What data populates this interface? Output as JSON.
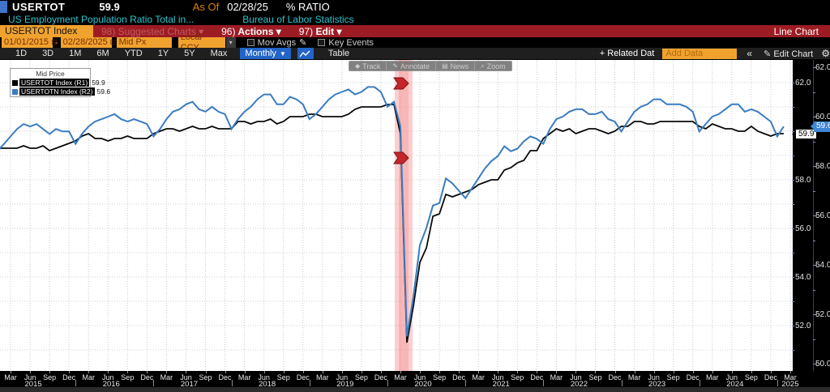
{
  "header": {
    "ticker": "USERTOT",
    "last_price": "59.9",
    "as_of_label": "As Of",
    "as_of_date": "02/28/25",
    "unit": "% RATIO",
    "description": "US Employment Population Ratio Total in...",
    "source": "Bureau of Labor Statistics"
  },
  "command_bar": {
    "security_field": "USERTOT Index",
    "suggested_charts_label": "98) Suggested Charts",
    "actions_num": "96)",
    "actions_label": "Actions",
    "edit_num": "97)",
    "edit_label": "Edit",
    "chart_type_label": "Line Chart"
  },
  "settings_bar": {
    "date_from": "01/01/2015",
    "date_to": "02/28/2025",
    "range_dash": "-",
    "price_field": "Mid Px",
    "currency_field": "Local CCY",
    "mov_avgs_label": "Mov Avgs",
    "key_events_label": "Key Events"
  },
  "period_bar": {
    "ranges": [
      "1D",
      "3D",
      "1M",
      "6M",
      "YTD",
      "1Y",
      "5Y",
      "Max"
    ],
    "frequency": "Monthly",
    "table_label": "Table",
    "related_data_label": "+ Related Dat",
    "add_data_value": "Add Data",
    "collapse_label": "«",
    "edit_chart_label": "Edit Chart"
  },
  "chart_toolbar": {
    "items": [
      {
        "glyph": "◆",
        "label": "Track"
      },
      {
        "glyph": "✎",
        "label": "Annotate"
      },
      {
        "glyph": "▤",
        "label": "News"
      },
      {
        "glyph": "⌕",
        "label": "Zoom"
      }
    ]
  },
  "legend": {
    "title": "Mid Price",
    "rows": [
      {
        "label": "USERTOT Index  (R1)",
        "value": "59.9",
        "color": "#000000"
      },
      {
        "label": "USERTOTN Index  (R2)",
        "value": "59.6",
        "color": "#3a7cc1"
      }
    ]
  },
  "chart_data": {
    "type": "line",
    "title": "US Employment Population Ratio Total",
    "frequency": "monthly",
    "x_start": "2015-01",
    "x_end": "2025-02",
    "grid": true,
    "legend_position": "top-left",
    "axis_r1": {
      "side": "right",
      "ticks": [
        62.0,
        58.0,
        56.0,
        54.0,
        52.0
      ],
      "last_value_badge": "59.9",
      "range_hint": [
        50.9,
        62.9
      ]
    },
    "axis_r2": {
      "side": "right",
      "ticks": [
        62.0,
        60.0,
        58.0,
        56.0,
        54.0,
        52.0,
        50.0
      ],
      "last_value_badge": "59.6",
      "range_hint": [
        49.5,
        62.3
      ]
    },
    "x_axis": {
      "month_labels": [
        "Mar",
        "Jun",
        "Sep",
        "Dec",
        "Mar",
        "Jun",
        "Sep",
        "Dec",
        "Mar",
        "Jun",
        "Sep",
        "Dec",
        "Mar",
        "Jun",
        "Sep",
        "Dec",
        "Mar",
        "Jun",
        "Sep",
        "Dec",
        "Mar",
        "Jun",
        "Sep",
        "Dec",
        "Mar",
        "Jun",
        "Sep",
        "Dec",
        "Mar",
        "Jun",
        "Sep",
        "Dec",
        "Mar",
        "Jun",
        "Sep",
        "Dec",
        "Mar",
        "Jun",
        "Sep",
        "Dec",
        "Mar"
      ],
      "year_labels": [
        "2015",
        "2016",
        "2017",
        "2018",
        "2019",
        "2020",
        "2021",
        "2022",
        "2023",
        "2024",
        "2025"
      ]
    },
    "event_band": {
      "from": "2020-02",
      "to": "2020-04",
      "color": "#f26a6a",
      "marker_count": 2
    },
    "series": [
      {
        "name": "USERTOT Index",
        "axis": "R1",
        "color": "#0a0a0a",
        "values": [
          59.3,
          59.3,
          59.3,
          59.3,
          59.4,
          59.3,
          59.3,
          59.4,
          59.2,
          59.3,
          59.4,
          59.5,
          59.6,
          59.8,
          59.9,
          59.7,
          59.7,
          59.6,
          59.7,
          59.7,
          59.8,
          59.7,
          59.7,
          59.7,
          59.9,
          60.0,
          60.1,
          60.1,
          60.0,
          60.1,
          60.2,
          60.1,
          60.1,
          60.2,
          60.1,
          60.1,
          60.1,
          60.4,
          60.4,
          60.3,
          60.4,
          60.4,
          60.5,
          60.3,
          60.4,
          60.6,
          60.6,
          60.6,
          60.7,
          60.7,
          60.6,
          60.6,
          60.6,
          60.6,
          60.7,
          60.9,
          61.0,
          61.0,
          61.0,
          61.0,
          61.1,
          61.1,
          59.9,
          51.3,
          52.8,
          54.6,
          55.2,
          56.5,
          56.6,
          57.4,
          57.3,
          57.4,
          57.5,
          57.6,
          57.8,
          57.9,
          58.0,
          58.0,
          58.4,
          58.5,
          58.7,
          58.8,
          59.2,
          59.2,
          59.7,
          59.9,
          60.1,
          60.0,
          60.1,
          59.9,
          60.0,
          60.1,
          60.1,
          60.0,
          59.9,
          60.0,
          60.2,
          60.2,
          60.4,
          60.4,
          60.3,
          60.3,
          60.4,
          60.4,
          60.4,
          60.4,
          60.4,
          60.4,
          60.2,
          60.1,
          60.3,
          60.2,
          60.1,
          60.1,
          60.0,
          60.0,
          60.2,
          60.0,
          59.9,
          59.8,
          59.9,
          59.9
        ]
      },
      {
        "name": "USERTOTN Index",
        "axis": "R2",
        "color": "#3a7cc1",
        "values": [
          58.6,
          58.9,
          59.2,
          59.5,
          59.7,
          59.6,
          59.7,
          59.5,
          59.3,
          59.5,
          59.4,
          59.4,
          58.9,
          59.3,
          59.6,
          59.8,
          59.9,
          60.0,
          60.1,
          59.9,
          59.8,
          59.9,
          59.8,
          59.7,
          59.2,
          59.5,
          59.9,
          60.2,
          60.3,
          60.5,
          60.6,
          60.3,
          60.2,
          60.4,
          60.2,
          60.1,
          59.5,
          59.9,
          60.2,
          60.4,
          60.7,
          60.9,
          60.9,
          60.5,
          60.5,
          60.8,
          60.7,
          60.5,
          59.9,
          60.1,
          60.4,
          60.7,
          60.9,
          61.0,
          61.1,
          60.9,
          61.0,
          61.2,
          61.2,
          61.0,
          60.4,
          60.6,
          59.6,
          51.1,
          52.7,
          54.8,
          55.5,
          56.4,
          56.5,
          57.5,
          57.3,
          57.0,
          56.7,
          57.1,
          57.5,
          57.9,
          58.2,
          58.4,
          58.8,
          58.6,
          58.7,
          59.0,
          59.2,
          59.1,
          58.9,
          59.5,
          59.9,
          60.0,
          60.2,
          60.3,
          60.3,
          60.1,
          60.1,
          60.2,
          59.9,
          59.8,
          59.4,
          59.8,
          60.2,
          60.4,
          60.5,
          60.7,
          60.7,
          60.5,
          60.5,
          60.5,
          60.4,
          60.2,
          59.4,
          59.7,
          60.0,
          60.1,
          60.3,
          60.5,
          60.5,
          60.2,
          60.3,
          60.2,
          60.0,
          59.8,
          59.2,
          59.6
        ]
      }
    ]
  },
  "colors": {
    "accent_amber": "#f0a22e",
    "command_bar_red": "#9d1c24",
    "highlight_blue": "#2264c8",
    "series_blue": "#3a7cc1",
    "badge_blue": "#3f86d8",
    "cyan_text": "#2ec4cf",
    "event_band_red": "#f26a6a"
  }
}
